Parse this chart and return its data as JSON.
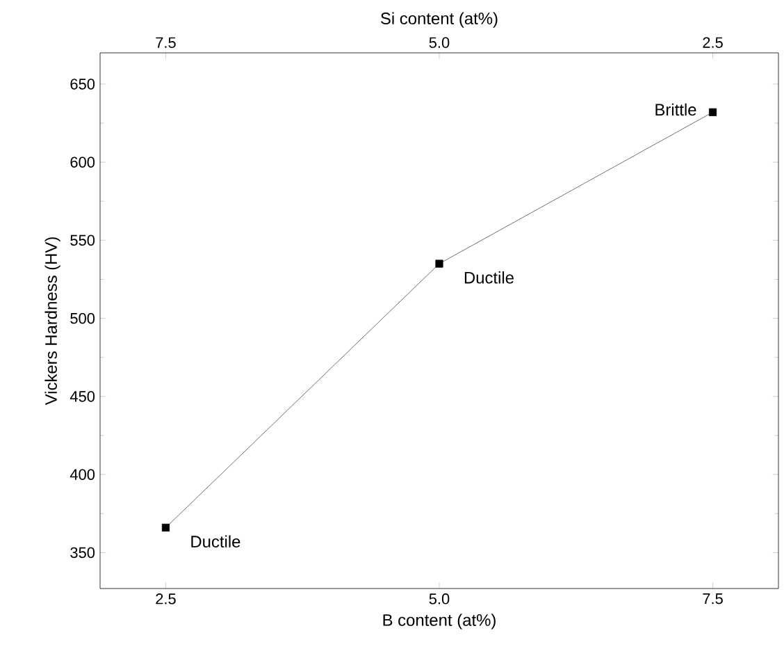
{
  "chart_data": {
    "type": "line",
    "xlabel": "B content (at%)",
    "x2label": "Si content (at%)",
    "ylabel": "Vickers Hardness (HV)",
    "x": [
      2.5,
      5.0,
      7.5
    ],
    "series": [
      {
        "color": "#000000",
        "values": [
          366,
          535,
          632
        ]
      }
    ],
    "marker": "square",
    "line_style": "solid",
    "grid": false,
    "xlim": [
      1.9,
      8.1
    ],
    "xticks": [
      {
        "value": 2.5,
        "label": "2.5"
      },
      {
        "value": 5.0,
        "label": "5.0"
      },
      {
        "value": 7.5,
        "label": "7.5"
      }
    ],
    "x2lim": [
      8.1,
      1.9
    ],
    "x2ticks": [
      {
        "value": 7.5,
        "label": "7.5"
      },
      {
        "value": 5.0,
        "label": "5.0"
      },
      {
        "value": 2.5,
        "label": "2.5"
      }
    ],
    "ylim": [
      327,
      670
    ],
    "yticks": [
      350,
      400,
      450,
      500,
      550,
      600,
      650
    ],
    "annotations": [
      {
        "text": "Ductile",
        "x": 2.5,
        "y": 366
      },
      {
        "text": "Ductile",
        "x": 5.0,
        "y": 535
      },
      {
        "text": "Brittle",
        "x": 7.5,
        "y": 632
      }
    ]
  }
}
